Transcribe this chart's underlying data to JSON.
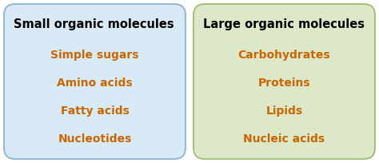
{
  "left_box": {
    "title": "Small organic molecules",
    "items": [
      "Simple sugars",
      "Amino acids",
      "Fatty acids",
      "Nucleotides"
    ],
    "bg_color": "#d8eaf6",
    "border_color": "#9ab8d0",
    "title_color": "#000000",
    "item_color": "#cc6600"
  },
  "right_box": {
    "title": "Large organic molecules",
    "items": [
      "Carbohydrates",
      "Proteins",
      "Lipids",
      "Nucleic acids"
    ],
    "bg_color": "#dce8c8",
    "border_color": "#a8c080",
    "title_color": "#000000",
    "item_color": "#cc6600"
  },
  "fig_bg_color": "#ffffff",
  "title_fontsize": 10.5,
  "item_fontsize": 10.0
}
